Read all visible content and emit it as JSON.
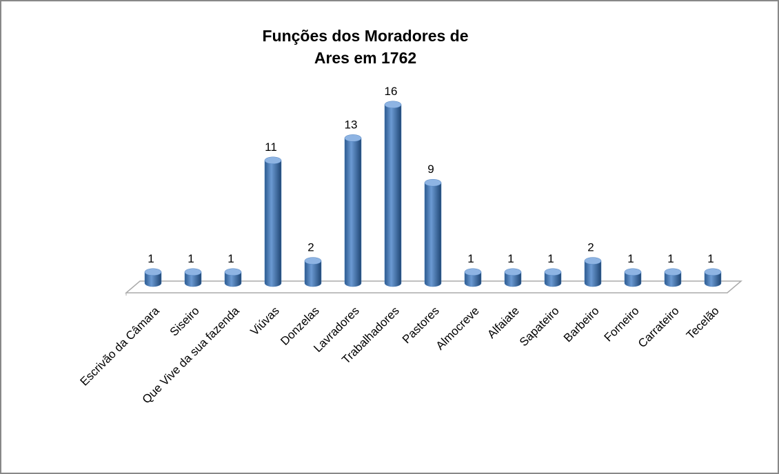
{
  "chart_data": {
    "type": "bar",
    "title": "Funções dos Moradores de Ares em 1762",
    "categories": [
      "Escrivão da Câmara",
      "Siseiro",
      "Que Vive da sua fazenda",
      "Viúvas",
      "Donzelas",
      "Lavradores",
      "Trabalhadores",
      "Pastores",
      "Almocreve",
      "Alfaiate",
      "Sapateiro",
      "Barbeiro",
      "Forneiro",
      "Carrateiro",
      "Tecelão"
    ],
    "values": [
      1,
      1,
      1,
      11,
      2,
      13,
      16,
      9,
      1,
      1,
      1,
      2,
      1,
      1,
      1
    ],
    "color": "#4f81bd"
  }
}
